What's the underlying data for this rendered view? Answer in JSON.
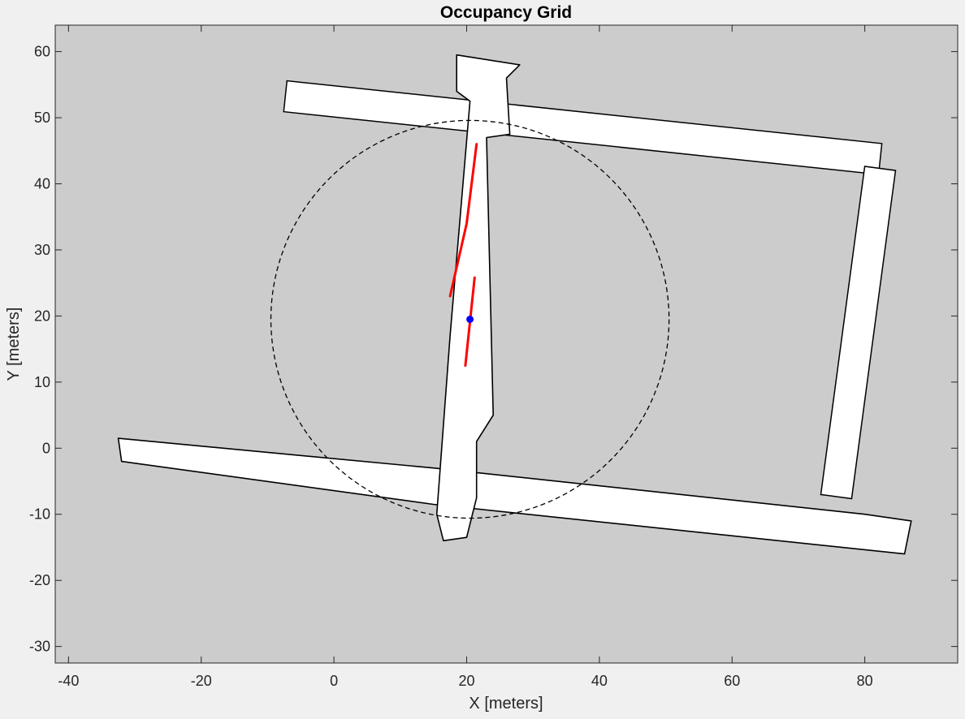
{
  "chart_data": {
    "type": "heatmap",
    "title": "Occupancy Grid",
    "xlabel": "X [meters]",
    "ylabel": "Y [meters]",
    "xlim": [
      -42,
      94
    ],
    "ylim": [
      -32.5,
      64
    ],
    "xticks": [
      -40,
      -20,
      0,
      20,
      40,
      60,
      80
    ],
    "yticks": [
      -30,
      -20,
      -10,
      0,
      10,
      20,
      30,
      40,
      50,
      60
    ],
    "grid": false,
    "colors": {
      "unknown": "#cccccc",
      "free": "#ffffff",
      "occupied": "#000000",
      "highlight": "#ff0000",
      "robot": "#0000ff",
      "range_circle": "#000000"
    },
    "robot_position": {
      "x": 20.5,
      "y": 19.5
    },
    "range_circle": {
      "center": {
        "x": 20.5,
        "y": 19.5
      },
      "radius": 30
    },
    "free_space_corridors": [
      {
        "name": "bottom-corridor",
        "points": [
          [
            -32.5,
            1.5
          ],
          [
            15,
            -3
          ],
          [
            80,
            -10
          ],
          [
            87,
            -11
          ],
          [
            86,
            -16
          ],
          [
            15,
            -8.5
          ],
          [
            -32,
            -2
          ]
        ]
      },
      {
        "name": "top-corridor",
        "points": [
          [
            -5,
            53
          ],
          [
            80,
            44
          ]
        ]
      },
      {
        "name": "left-vertical-corridor",
        "points": [
          [
            15.5,
            -10
          ],
          [
            16.5,
            -14
          ],
          [
            20,
            -13.5
          ],
          [
            21.5,
            -7.5
          ],
          [
            21.5,
            1
          ],
          [
            24,
            5
          ],
          [
            23,
            47
          ],
          [
            26.5,
            47.5
          ],
          [
            26,
            56
          ],
          [
            28,
            58
          ],
          [
            18.5,
            59.5
          ],
          [
            18.5,
            54
          ],
          [
            20.5,
            52.5
          ],
          [
            17.5,
            17
          ]
        ]
      },
      {
        "name": "right-vertical-corridor",
        "points": [
          [
            82,
            40
          ],
          [
            76,
            -5
          ]
        ]
      }
    ],
    "highlighted_walls": [
      {
        "points": [
          [
            17.5,
            23
          ],
          [
            20,
            34
          ],
          [
            21.5,
            46
          ]
        ]
      },
      {
        "points": [
          [
            21.2,
            25.8
          ],
          [
            19.8,
            12.5
          ]
        ]
      }
    ]
  }
}
